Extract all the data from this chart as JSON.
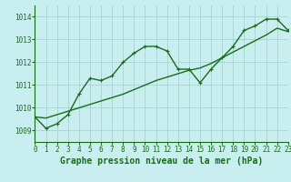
{
  "title": "Graphe pression niveau de la mer (hPa)",
  "xlabel_hours": [
    0,
    1,
    2,
    3,
    4,
    5,
    6,
    7,
    8,
    9,
    10,
    11,
    12,
    13,
    14,
    15,
    16,
    17,
    18,
    19,
    20,
    21,
    22,
    23
  ],
  "pressure_jagged": [
    1009.6,
    1009.1,
    1009.3,
    1009.7,
    1010.6,
    1011.3,
    1011.2,
    1011.4,
    1012.0,
    1012.4,
    1012.7,
    1012.7,
    1012.5,
    1011.7,
    1011.7,
    1011.1,
    1011.7,
    1012.2,
    1012.7,
    1013.4,
    1013.6,
    1013.9,
    1013.9,
    1013.4
  ],
  "pressure_smooth": [
    1009.6,
    1009.55,
    1009.7,
    1009.85,
    1010.0,
    1010.15,
    1010.3,
    1010.45,
    1010.6,
    1010.8,
    1011.0,
    1011.2,
    1011.35,
    1011.5,
    1011.65,
    1011.75,
    1011.95,
    1012.2,
    1012.45,
    1012.7,
    1012.95,
    1013.2,
    1013.5,
    1013.35
  ],
  "ylim": [
    1008.5,
    1014.5
  ],
  "yticks": [
    1009,
    1010,
    1011,
    1012,
    1013,
    1014
  ],
  "xlim": [
    0,
    23
  ],
  "line_color": "#1a6b1a",
  "bg_color": "#c8eef0",
  "grid_color": "#9dcfcc",
  "title_fontsize": 7.0,
  "tick_fontsize": 5.5,
  "line_width": 1.0,
  "marker_size": 3.5
}
